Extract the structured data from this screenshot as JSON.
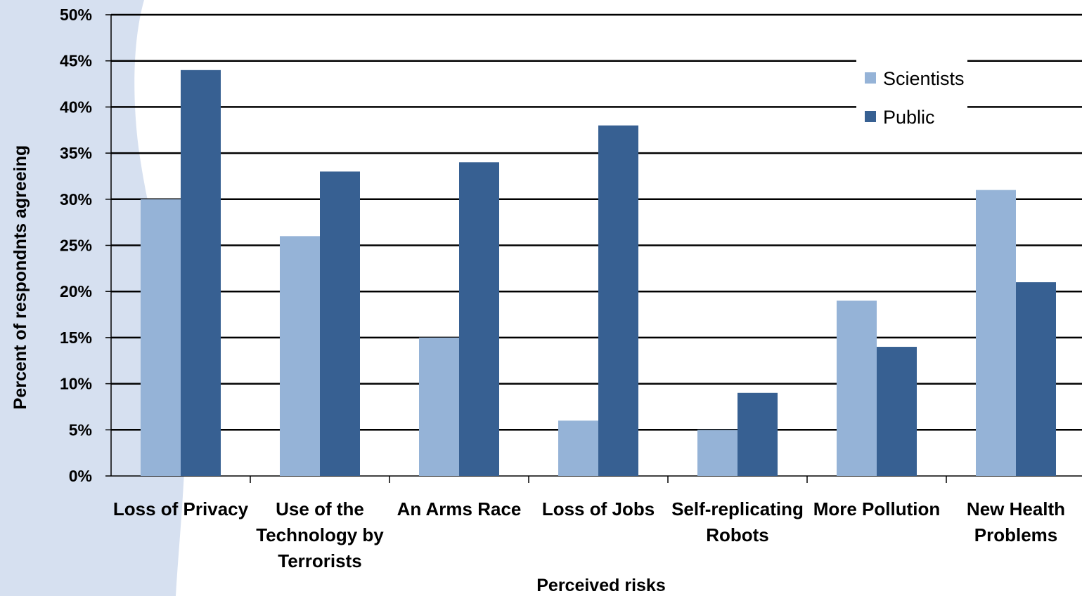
{
  "chart_data": {
    "type": "bar",
    "categories": [
      [
        "Loss of Privacy"
      ],
      [
        "Use of the",
        "Technology by",
        "Terrorists"
      ],
      [
        "An Arms Race"
      ],
      [
        "Loss of Jobs"
      ],
      [
        "Self-replicating",
        "Robots"
      ],
      [
        "More Pollution"
      ],
      [
        "New Health",
        "Problems"
      ]
    ],
    "series": [
      {
        "name": "Scientists",
        "color": "#95b3d7",
        "values": [
          30,
          26,
          15,
          6,
          5,
          19,
          31
        ]
      },
      {
        "name": "Public",
        "color": "#376092",
        "values": [
          44,
          33,
          34,
          38,
          9,
          14,
          21
        ]
      }
    ],
    "ylim": [
      0,
      50
    ],
    "ytick_step": 5,
    "ytick_format": "%",
    "xlabel": "Perceived risks",
    "ylabel": "Percent of respondnts agreeing",
    "grid": true,
    "legend_position": "top-right",
    "background_accent": "#d6e0f0"
  }
}
